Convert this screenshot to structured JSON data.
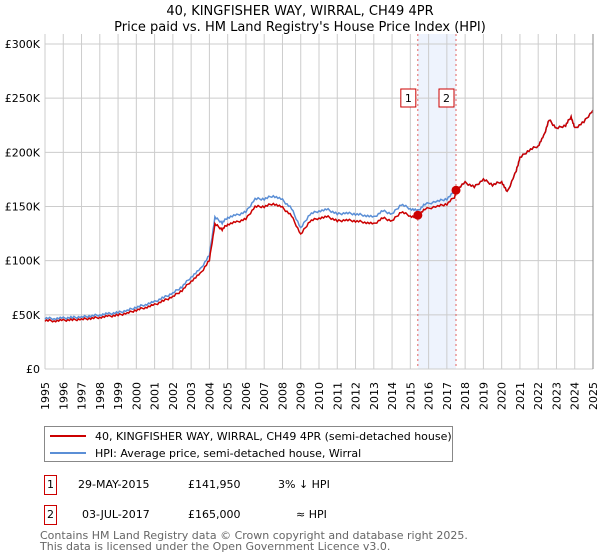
{
  "title": "40, KINGFISHER WAY, WIRRAL, CH49 4PR",
  "subtitle": "Price paid vs. HM Land Registry's House Price Index (HPI)",
  "chart_data": {
    "type": "line",
    "title": "40, KINGFISHER WAY, WIRRAL, CH49 4PR",
    "subtitle": "Price paid vs. HM Land Registry's House Price Index (HPI)",
    "xlim": [
      1995,
      2025
    ],
    "ylim": [
      0,
      300000
    ],
    "x_ticks": [
      "1995",
      "1996",
      "1997",
      "1998",
      "1999",
      "2000",
      "2001",
      "2002",
      "2003",
      "2004",
      "2005",
      "2006",
      "2007",
      "2008",
      "2009",
      "2010",
      "2011",
      "2012",
      "2013",
      "2014",
      "2015",
      "2016",
      "2017",
      "2018",
      "2019",
      "2020",
      "2021",
      "2022",
      "2023",
      "2024",
      "2025"
    ],
    "y_ticks": [
      {
        "v": 0,
        "label": "£0"
      },
      {
        "v": 50000,
        "label": "£50K"
      },
      {
        "v": 100000,
        "label": "£100K"
      },
      {
        "v": 150000,
        "label": "£150K"
      },
      {
        "v": 200000,
        "label": "£200K"
      },
      {
        "v": 250000,
        "label": "£250K"
      },
      {
        "v": 300000,
        "label": "£300K"
      }
    ],
    "grid": true,
    "legend_position": "below",
    "series": [
      {
        "name": "HPI: Average price, semi-detached house, Wirral",
        "color": "#5b8fd6",
        "x": [
          1995,
          1995.5,
          1996,
          1996.5,
          1997,
          1997.5,
          1998,
          1998.5,
          1999,
          1999.5,
          2000,
          2000.5,
          2001,
          2001.5,
          2002,
          2002.5,
          2003,
          2003.5,
          2004,
          2004.3,
          2004.7,
          2005,
          2005.5,
          2006,
          2006.5,
          2007,
          2007.5,
          2008,
          2008.5,
          2009,
          2009.5,
          2010,
          2010.5,
          2011,
          2011.5,
          2012,
          2012.5,
          2013,
          2013.5,
          2014,
          2014.5,
          2015,
          2015.4,
          2015.8,
          2016.5,
          2017,
          2017.5,
          2018,
          2018.5,
          2019,
          2019.5,
          2020,
          2020.3,
          2020.8,
          2021,
          2021.5,
          2022,
          2022.3,
          2022.6,
          2023,
          2023.5,
          2023.8,
          2024,
          2024.5,
          2025
        ],
        "y": [
          47000,
          46500,
          47000,
          47500,
          48000,
          49000,
          50000,
          51000,
          52000,
          54000,
          57000,
          59500,
          62000,
          66000,
          70000,
          76000,
          85000,
          92000,
          105000,
          140000,
          135000,
          140000,
          142000,
          145000,
          157000,
          157000,
          160000,
          156000,
          148000,
          130000,
          143000,
          146000,
          147000,
          143000,
          144000,
          143000,
          142000,
          140000,
          146000,
          143000,
          152000,
          148000,
          146000,
          152000,
          155000,
          157000,
          165000,
          172000,
          168000,
          175000,
          170000,
          173000,
          163000,
          183000,
          195000,
          202000,
          206000,
          215000,
          230000,
          222000,
          225000,
          233000,
          222000,
          228000,
          239000
        ]
      },
      {
        "name": "40, KINGFISHER WAY, WIRRAL, CH49 4PR (semi-detached house)",
        "color": "#cc0000"
      }
    ],
    "sales": [
      {
        "id": "1",
        "x": 2015.41,
        "y": 141950
      },
      {
        "id": "2",
        "x": 2017.5,
        "y": 165000
      }
    ]
  },
  "legend": {
    "property": "40, KINGFISHER WAY, WIRRAL, CH49 4PR (semi-detached house)",
    "hpi": "HPI: Average price, semi-detached house, Wirral"
  },
  "transactions": [
    {
      "id": "1",
      "date": "29-MAY-2015",
      "price": "£141,950",
      "vs_hpi": "3% ↓ HPI"
    },
    {
      "id": "2",
      "date": "03-JUL-2017",
      "price": "£165,000",
      "vs_hpi": "≈ HPI"
    }
  ],
  "footer": {
    "line1": "Contains HM Land Registry data © Crown copyright and database right 2025.",
    "line2": "This data is licensed under the Open Government Licence v3.0."
  }
}
